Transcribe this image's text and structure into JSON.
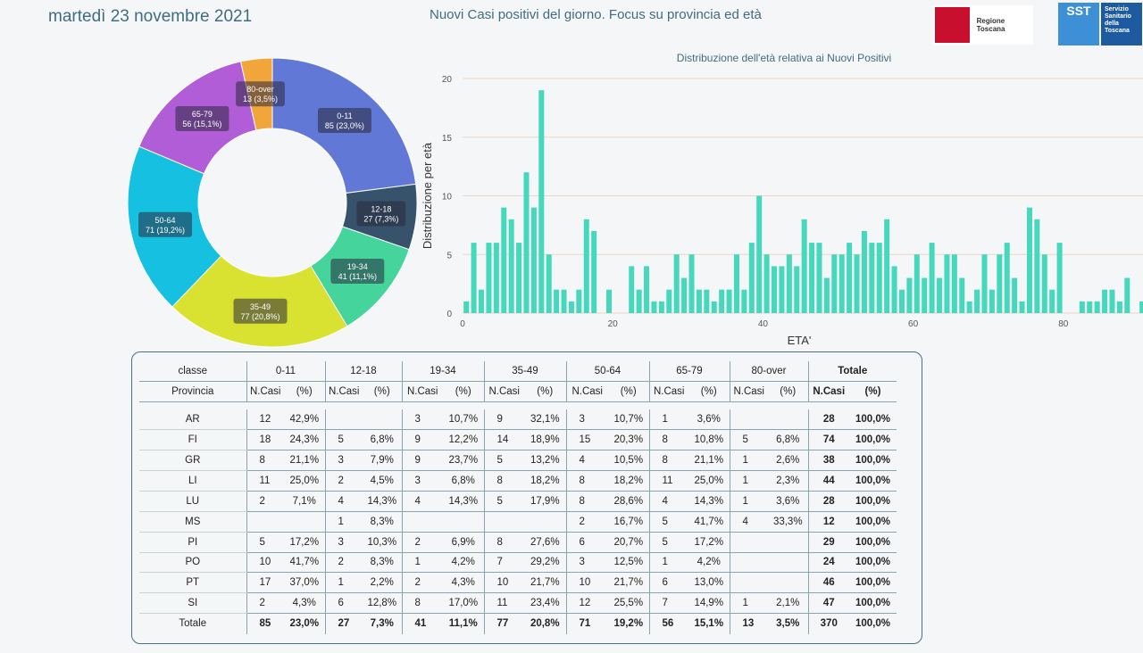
{
  "header": {
    "date": "martedì 23 novembre 2021",
    "subtitle": "Nuovi Casi positivi del giorno. Focus su provincia ed età",
    "logo_rt_text": "Regione Toscana",
    "logo_sst_text": "SST",
    "logo_sst_subtext": [
      "Servizio",
      "Sanitario",
      "della",
      "Toscana"
    ]
  },
  "donut": {
    "type": "pie",
    "slices": [
      {
        "label": "0-11",
        "value": 85,
        "text": "85 (23,0%)",
        "color": "#6278d6"
      },
      {
        "label": "12-18",
        "value": 27,
        "text": "27 (7,3%)",
        "color": "#37536b"
      },
      {
        "label": "19-34",
        "value": 41,
        "text": "41 (11,1%)",
        "color": "#44d49c"
      },
      {
        "label": "35-49",
        "value": 77,
        "text": "77 (20,8%)",
        "color": "#d9e231"
      },
      {
        "label": "50-64",
        "value": 71,
        "text": "71 (19,2%)",
        "color": "#16c0e0"
      },
      {
        "label": "65-79",
        "value": 56,
        "text": "56 (15,1%)",
        "color": "#b15dd8"
      },
      {
        "label": "80-over",
        "value": 13,
        "text": "13 (3,5%)",
        "color": "#f2a53a"
      }
    ]
  },
  "chart_data": {
    "type": "bar",
    "title": "Distribuzione dell'età relativa ai Nuovi Positivi",
    "xlabel": "ETA'",
    "ylabel": "Distribuzione per età",
    "ylim": [
      0,
      20
    ],
    "yticks": [
      0,
      5,
      10,
      15,
      20
    ],
    "xticks": [
      0,
      20,
      40,
      60,
      80
    ],
    "bar_color": "#45d8bd",
    "x": [
      0,
      1,
      2,
      3,
      4,
      5,
      6,
      7,
      8,
      9,
      10,
      11,
      12,
      13,
      14,
      15,
      16,
      17,
      18,
      19,
      20,
      21,
      22,
      23,
      24,
      25,
      26,
      27,
      28,
      29,
      30,
      31,
      32,
      33,
      34,
      35,
      36,
      37,
      38,
      39,
      40,
      41,
      42,
      43,
      44,
      45,
      46,
      47,
      48,
      49,
      50,
      51,
      52,
      53,
      54,
      55,
      56,
      57,
      58,
      59,
      60,
      61,
      62,
      63,
      64,
      65,
      66,
      67,
      68,
      69,
      70,
      71,
      72,
      73,
      74,
      75,
      76,
      77,
      78,
      79,
      80,
      81,
      82,
      83,
      84,
      85,
      86,
      87,
      88,
      89,
      90
    ],
    "values": [
      1,
      6,
      2,
      6,
      6,
      9,
      8,
      6,
      12,
      9,
      19,
      5,
      2,
      2,
      1,
      2,
      8,
      7,
      0,
      2,
      0,
      0,
      4,
      2,
      4,
      1,
      1,
      2,
      5,
      3,
      5,
      2,
      2,
      1,
      2,
      2,
      5,
      2,
      6,
      10,
      5,
      4,
      4,
      5,
      4,
      8,
      6,
      6,
      3,
      5,
      5,
      6,
      5,
      7,
      6,
      6,
      8,
      4,
      2,
      3,
      5,
      3,
      6,
      3,
      5,
      5,
      3,
      1,
      2,
      5,
      2,
      5,
      6,
      3,
      1,
      9,
      8,
      5,
      2,
      6,
      0,
      0,
      1,
      1,
      1,
      2,
      2,
      1,
      3,
      0,
      1
    ]
  },
  "table": {
    "class_label": "classe",
    "provincia_label": "Provincia",
    "groups": [
      "0-11",
      "12-18",
      "19-34",
      "35-49",
      "50-64",
      "65-79",
      "80-over",
      "Totale"
    ],
    "sub_ncasi": "N.Casi",
    "sub_pct": "(%)",
    "rows": [
      {
        "prov": "AR",
        "cells": [
          "12",
          "42,9%",
          "",
          "",
          "3",
          "10,7%",
          "9",
          "32,1%",
          "3",
          "10,7%",
          "1",
          "3,6%",
          "",
          "",
          "28",
          "100,0%"
        ]
      },
      {
        "prov": "FI",
        "cells": [
          "18",
          "24,3%",
          "5",
          "6,8%",
          "9",
          "12,2%",
          "14",
          "18,9%",
          "15",
          "20,3%",
          "8",
          "10,8%",
          "5",
          "6,8%",
          "74",
          "100,0%"
        ]
      },
      {
        "prov": "GR",
        "cells": [
          "8",
          "21,1%",
          "3",
          "7,9%",
          "9",
          "23,7%",
          "5",
          "13,2%",
          "4",
          "10,5%",
          "8",
          "21,1%",
          "1",
          "2,6%",
          "38",
          "100,0%"
        ]
      },
      {
        "prov": "LI",
        "cells": [
          "11",
          "25,0%",
          "2",
          "4,5%",
          "3",
          "6,8%",
          "8",
          "18,2%",
          "8",
          "18,2%",
          "11",
          "25,0%",
          "1",
          "2,3%",
          "44",
          "100,0%"
        ]
      },
      {
        "prov": "LU",
        "cells": [
          "2",
          "7,1%",
          "4",
          "14,3%",
          "4",
          "14,3%",
          "5",
          "17,9%",
          "8",
          "28,6%",
          "4",
          "14,3%",
          "1",
          "3,6%",
          "28",
          "100,0%"
        ]
      },
      {
        "prov": "MS",
        "cells": [
          "",
          "",
          "1",
          "8,3%",
          "",
          "",
          "",
          "",
          "2",
          "16,7%",
          "5",
          "41,7%",
          "4",
          "33,3%",
          "12",
          "100,0%"
        ]
      },
      {
        "prov": "PI",
        "cells": [
          "5",
          "17,2%",
          "3",
          "10,3%",
          "2",
          "6,9%",
          "8",
          "27,6%",
          "6",
          "20,7%",
          "5",
          "17,2%",
          "",
          "",
          "29",
          "100,0%"
        ]
      },
      {
        "prov": "PO",
        "cells": [
          "10",
          "41,7%",
          "2",
          "8,3%",
          "1",
          "4,2%",
          "7",
          "29,2%",
          "3",
          "12,5%",
          "1",
          "4,2%",
          "",
          "",
          "24",
          "100,0%"
        ]
      },
      {
        "prov": "PT",
        "cells": [
          "17",
          "37,0%",
          "1",
          "2,2%",
          "2",
          "4,3%",
          "10",
          "21,7%",
          "10",
          "21,7%",
          "6",
          "13,0%",
          "",
          "",
          "46",
          "100,0%"
        ]
      },
      {
        "prov": "SI",
        "cells": [
          "2",
          "4,3%",
          "6",
          "12,8%",
          "8",
          "17,0%",
          "11",
          "23,4%",
          "12",
          "25,5%",
          "7",
          "14,9%",
          "1",
          "2,1%",
          "47",
          "100,0%"
        ]
      }
    ],
    "total_row": {
      "prov": "Totale",
      "cells": [
        "85",
        "23,0%",
        "27",
        "7,3%",
        "41",
        "11,1%",
        "77",
        "20,8%",
        "71",
        "19,2%",
        "56",
        "15,1%",
        "13",
        "3,5%",
        "370",
        "100,0%"
      ]
    }
  }
}
